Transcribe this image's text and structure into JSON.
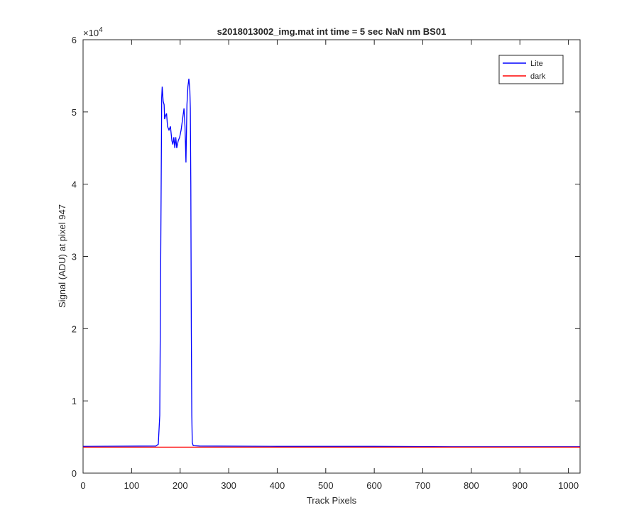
{
  "chart_data": {
    "type": "line",
    "title": "s2018013002_img.mat int time = 5 sec  NaN nm BS01",
    "x_label": "Track Pixels",
    "y_label": "Signal (ADU) at pixel 947",
    "y_multiplier": {
      "base": "×10",
      "exponent": "4"
    },
    "x": [
      0,
      150,
      155,
      158,
      160,
      162,
      163,
      165,
      167,
      168,
      170,
      172,
      174,
      177,
      180,
      183,
      185,
      187,
      189,
      191,
      193,
      196,
      199,
      202,
      205,
      208,
      210,
      212,
      214,
      216,
      218,
      220,
      221,
      222,
      223,
      224,
      225,
      227,
      240,
      400,
      600,
      800,
      1024
    ],
    "series": [
      {
        "name": "Lite",
        "color": "#0000ff",
        "values": [
          3700,
          3750,
          4000,
          8000,
          30000,
          52000,
          53500,
          51500,
          51000,
          49000,
          49500,
          49800,
          48000,
          47500,
          48000,
          46000,
          45500,
          46500,
          45000,
          46500,
          45000,
          46000,
          46500,
          47500,
          49000,
          50500,
          48000,
          43000,
          51000,
          53500,
          54600,
          53000,
          50500,
          40000,
          20000,
          8000,
          4200,
          3800,
          3750,
          3700,
          3700,
          3650,
          3650
        ]
      },
      {
        "name": "dark",
        "color": "#ff0000",
        "values": [
          3600,
          3600,
          3600,
          3600,
          3600,
          3600,
          3600,
          3600,
          3600,
          3600,
          3600,
          3600,
          3600,
          3600,
          3600,
          3600,
          3600,
          3600,
          3600,
          3600,
          3600,
          3600,
          3600,
          3600,
          3600,
          3600,
          3600,
          3600,
          3600,
          3600,
          3600,
          3600,
          3600,
          3600,
          3600,
          3600,
          3600,
          3600,
          3600,
          3600,
          3600,
          3600,
          3600
        ]
      }
    ],
    "xlim": [
      0,
      1024
    ],
    "xticks": [
      0,
      100,
      200,
      300,
      400,
      500,
      600,
      700,
      800,
      900,
      1000
    ],
    "ylim": [
      0,
      60000
    ],
    "yticks": [
      {
        "value": 0,
        "label": "0"
      },
      {
        "value": 10000,
        "label": "1"
      },
      {
        "value": 20000,
        "label": "2"
      },
      {
        "value": 30000,
        "label": "3"
      },
      {
        "value": 40000,
        "label": "4"
      },
      {
        "value": 50000,
        "label": "5"
      },
      {
        "value": 60000,
        "label": "6"
      }
    ],
    "legend": "top-right",
    "grid": false
  }
}
